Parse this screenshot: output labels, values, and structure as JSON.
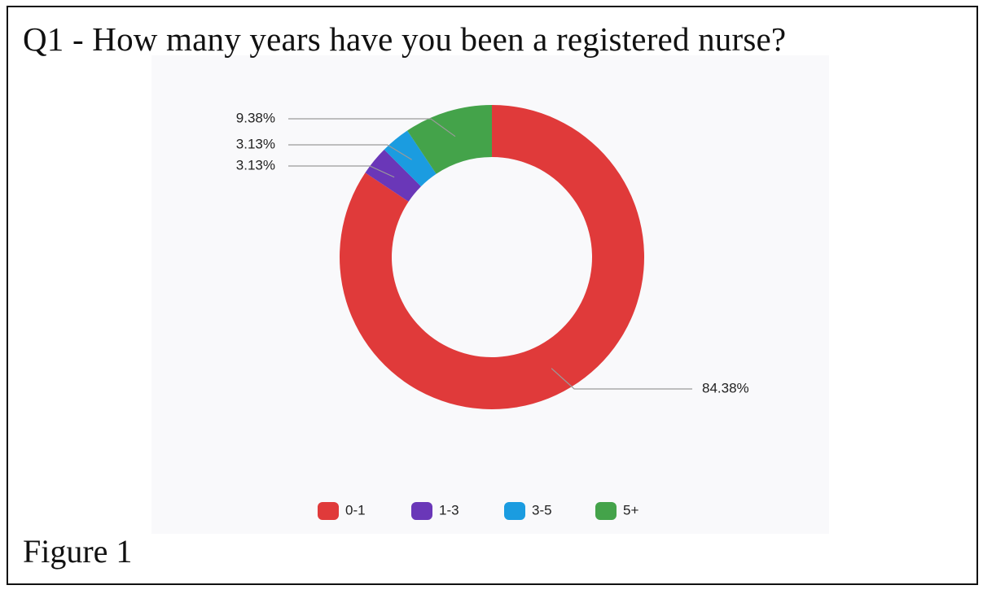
{
  "figure": {
    "title": "Q1 - How many years have you been a registered nurse?",
    "caption": "Figure 1"
  },
  "chart_data": {
    "type": "pie",
    "variant": "donut",
    "title": "Q1 - How many years have you been a registered nurse?",
    "categories": [
      "0-1",
      "1-3",
      "3-5",
      "5+"
    ],
    "values": [
      84.38,
      3.13,
      3.13,
      9.38
    ],
    "data_labels": [
      "84.38%",
      "3.13%",
      "3.13%",
      "9.38%"
    ],
    "colors": [
      "#e03a3a",
      "#6a37b8",
      "#1b9ce0",
      "#44a34a"
    ],
    "legend": "bottom-center",
    "start_angle_deg": 0,
    "direction": "clockwise"
  }
}
